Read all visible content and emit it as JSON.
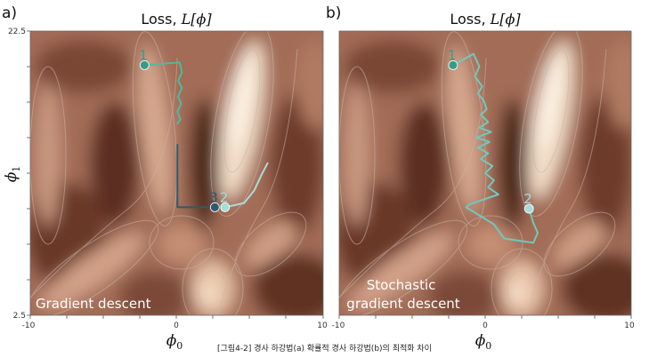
{
  "panels": [
    {
      "letter": "a)",
      "title_prefix": "Loss, ",
      "title_math": "L[ϕ]",
      "overlay_lines": [
        "Gradient descent"
      ],
      "points": [
        {
          "label": "1",
          "phi0": -2.2,
          "phi1": 20.1,
          "color": "#3a9a8a"
        },
        {
          "label": "3",
          "phi0": 2.6,
          "phi1": 10.1,
          "color": "#2e5a6e"
        },
        {
          "label": "2",
          "phi0": 3.3,
          "phi1": 10.1,
          "color": "#a8dcd6"
        }
      ],
      "paths": [
        {
          "color": "#4fb8a4",
          "points": [
            [
              -2.2,
              20.1
            ],
            [
              0.2,
              20.3
            ],
            [
              0.35,
              19.6
            ],
            [
              0.1,
              19.0
            ],
            [
              0.35,
              18.5
            ],
            [
              0.1,
              17.9
            ],
            [
              0.3,
              17.4
            ],
            [
              0.05,
              16.8
            ],
            [
              0.25,
              16.3
            ],
            [
              0.05,
              16.0
            ]
          ]
        },
        {
          "color": "#2e5a6e",
          "points": [
            [
              0.05,
              14.5
            ],
            [
              0.05,
              10.1
            ],
            [
              2.6,
              10.1
            ]
          ]
        },
        {
          "color": "#a8dcd6",
          "points": [
            [
              3.3,
              10.1
            ],
            [
              4.6,
              10.4
            ],
            [
              5.3,
              11.3
            ],
            [
              5.8,
              12.4
            ],
            [
              6.2,
              13.2
            ]
          ]
        }
      ]
    },
    {
      "letter": "b)",
      "title_prefix": "Loss, ",
      "title_math": "L[ϕ]",
      "overlay_lines": [
        "Stochastic",
        "gradient descent"
      ],
      "points": [
        {
          "label": "1",
          "phi0": -2.2,
          "phi1": 20.1,
          "color": "#3a9a8a"
        },
        {
          "label": "2",
          "phi0": 3.0,
          "phi1": 10.0,
          "color": "#a8dcd6"
        }
      ],
      "paths": [
        {
          "color": "#6fc9bb",
          "points": [
            [
              -2.2,
              20.1
            ],
            [
              -0.8,
              20.9
            ],
            [
              -0.4,
              20.0
            ],
            [
              -0.7,
              19.3
            ],
            [
              -0.2,
              18.6
            ],
            [
              -0.5,
              18.1
            ],
            [
              -0.1,
              17.6
            ],
            [
              0.1,
              17.0
            ],
            [
              -0.3,
              16.6
            ],
            [
              0.2,
              16.1
            ],
            [
              -0.4,
              15.7
            ],
            [
              0.4,
              15.4
            ],
            [
              -0.6,
              15.0
            ],
            [
              0.3,
              14.7
            ],
            [
              -0.5,
              14.3
            ],
            [
              0.2,
              13.9
            ],
            [
              -0.3,
              13.5
            ],
            [
              0.5,
              13.0
            ],
            [
              0.0,
              12.5
            ],
            [
              0.6,
              12.0
            ],
            [
              0.2,
              11.5
            ],
            [
              0.9,
              11.0
            ],
            [
              -1.1,
              10.3
            ],
            [
              -1.3,
              10.1
            ],
            [
              0.6,
              8.9
            ],
            [
              1.3,
              7.9
            ],
            [
              3.3,
              7.6
            ],
            [
              3.6,
              8.3
            ],
            [
              3.3,
              9.0
            ],
            [
              3.0,
              10.0
            ]
          ]
        }
      ]
    }
  ],
  "axes": {
    "x_label": "ϕ",
    "x_label_sub": "0",
    "y_label": "ϕ",
    "y_label_sub": "1",
    "x_ticks": [
      "-10",
      "0",
      "10"
    ],
    "y_ticks": [
      "22.5",
      "2.5"
    ],
    "xlim": [
      -10,
      10
    ],
    "ylim": [
      2.5,
      22.5
    ]
  },
  "caption": "[그림4-2] 경사 하강법(a) 확률적 경사 하강법(b)의 최적화 차이",
  "colors": {
    "surface_dark": "#4a2518",
    "surface_mid": "#a8705a",
    "surface_light": "#f3dfc9",
    "contour": "#c9b5a8"
  }
}
